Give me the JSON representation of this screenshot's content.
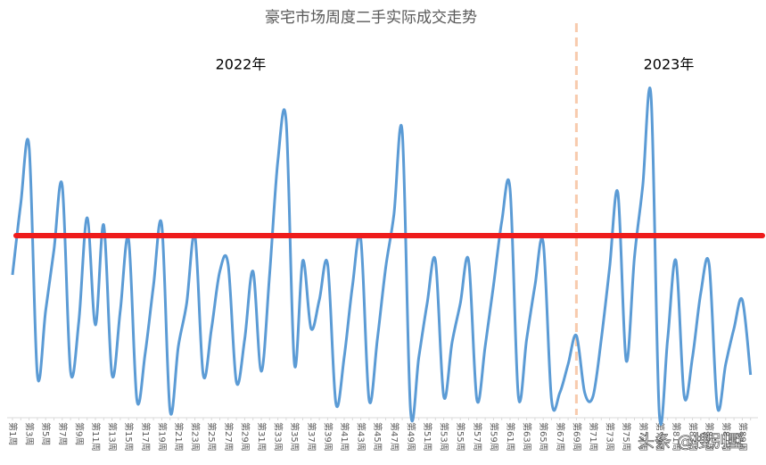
{
  "chart_data": {
    "type": "line",
    "title": "豪宅市场周度二手实际成交走势",
    "annotations": [
      {
        "text": "2022年"
      },
      {
        "text": "2023年"
      }
    ],
    "watermark": "头条 @搜别墅",
    "categories": [
      "第1周",
      null,
      "第3周",
      null,
      "第5周",
      null,
      "第7周",
      null,
      "第9周",
      null,
      "第11周",
      null,
      "第13周",
      null,
      "第15周",
      null,
      "第17周",
      null,
      "第19周",
      null,
      "第21周",
      null,
      "第23周",
      null,
      "第25周",
      null,
      "第27周",
      null,
      "第29周",
      null,
      "第31周",
      null,
      "第33周",
      null,
      "第35周",
      null,
      "第37周",
      null,
      "第39周",
      null,
      "第41周",
      null,
      "第43周",
      null,
      "第45周",
      null,
      "第47周",
      null,
      "第49周",
      null,
      "第51周",
      null,
      "第53周",
      null,
      "第55周",
      null,
      "第57周",
      null,
      "第59周",
      null,
      "第61周",
      null,
      "第63周",
      null,
      "第65周",
      null,
      "第67周",
      null,
      "第69周",
      null,
      "第71周",
      null,
      "第73周",
      null,
      "第75周",
      null,
      "第77周",
      null,
      "第79周",
      null,
      "第81周",
      null,
      "第83周",
      null,
      "第85周",
      null,
      "第87周",
      null,
      "第89周",
      null
    ],
    "series": [
      {
        "color": "#5b9bd5",
        "values": [
          40,
          60,
          76,
          12,
          30,
          47,
          65,
          13,
          27,
          56,
          26,
          54,
          12,
          30,
          50,
          5,
          18,
          37,
          54,
          2,
          20,
          32,
          51,
          12,
          25,
          41,
          43,
          10,
          22,
          41,
          13,
          40,
          72,
          83,
          15,
          44,
          25,
          33,
          43,
          4,
          17,
          37,
          50,
          5,
          22,
          42,
          57,
          80,
          2,
          17,
          32,
          44,
          6,
          21,
          32,
          44,
          5,
          20,
          37,
          55,
          64,
          6,
          22,
          37,
          49,
          5,
          7,
          15,
          23,
          7,
          6,
          22,
          42,
          63,
          16,
          45,
          65,
          90,
          1,
          22,
          44,
          6,
          17,
          35,
          43,
          3,
          15,
          25,
          33,
          12
        ]
      }
    ],
    "hline": {
      "value": 51,
      "color": "#ee1c1c"
    },
    "vline": {
      "category": "第69周",
      "color": "#f8cbad"
    },
    "ylim": [
      0,
      100
    ]
  }
}
